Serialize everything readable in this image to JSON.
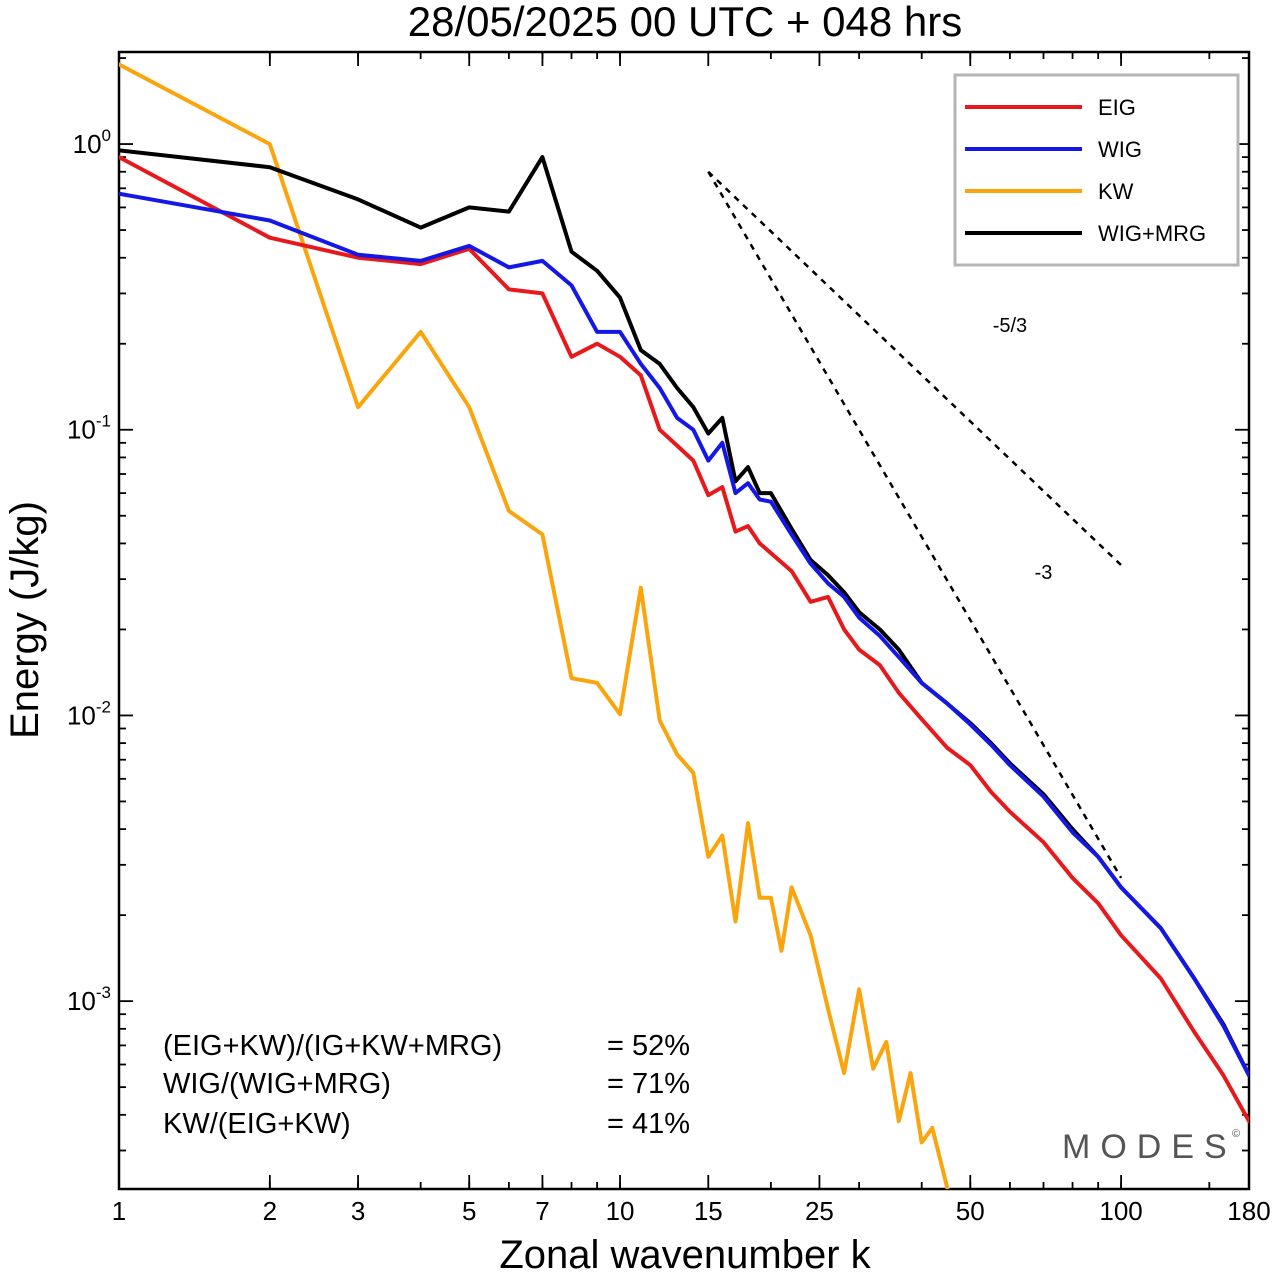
{
  "chart_data": {
    "type": "line",
    "title": "28/05/2025  00 UTC  + 048 hrs",
    "xlabel": "Zonal wavenumber k",
    "ylabel": "Energy (J/kg)",
    "xscale": "log",
    "yscale": "log",
    "xlim": [
      1,
      180
    ],
    "ylim": [
      0.00022,
      2.1
    ],
    "xticks": [
      1,
      2,
      3,
      5,
      7,
      10,
      15,
      25,
      50,
      100,
      180
    ],
    "xtick_labels": [
      "1",
      "2",
      "3",
      "5",
      "7",
      "10",
      "15",
      "25",
      "50",
      "100",
      "180"
    ],
    "yticks": [
      {
        "value": 1,
        "base": "10",
        "exp": "0"
      },
      {
        "value": 0.1,
        "base": "10",
        "exp": "-1"
      },
      {
        "value": 0.01,
        "base": "10",
        "exp": "-2"
      },
      {
        "value": 0.001,
        "base": "10",
        "exp": "-3"
      }
    ],
    "legend_position": "top-right",
    "series": [
      {
        "name": "EIG",
        "color": "#e8191c",
        "x": [
          1,
          2,
          3,
          4,
          5,
          6,
          7,
          8,
          9,
          10,
          11,
          12,
          13,
          14,
          15,
          16,
          17,
          18,
          19,
          20,
          22,
          24,
          26,
          28,
          30,
          33,
          36,
          40,
          45,
          50,
          55,
          60,
          70,
          80,
          90,
          100,
          120,
          140,
          160,
          180
        ],
        "y": [
          0.9,
          0.47,
          0.4,
          0.38,
          0.43,
          0.31,
          0.3,
          0.18,
          0.2,
          0.18,
          0.155,
          0.1,
          0.088,
          0.078,
          0.059,
          0.063,
          0.044,
          0.046,
          0.04,
          0.037,
          0.032,
          0.025,
          0.026,
          0.02,
          0.017,
          0.015,
          0.012,
          0.0097,
          0.0077,
          0.0067,
          0.0054,
          0.0046,
          0.0036,
          0.0027,
          0.0022,
          0.0017,
          0.0012,
          0.00078,
          0.00055,
          0.00038
        ]
      },
      {
        "name": "WIG",
        "color": "#1418e6",
        "x": [
          1,
          2,
          3,
          4,
          5,
          6,
          7,
          8,
          9,
          10,
          11,
          12,
          13,
          14,
          15,
          16,
          17,
          18,
          19,
          20,
          22,
          24,
          26,
          28,
          30,
          33,
          36,
          40,
          45,
          50,
          55,
          60,
          70,
          80,
          90,
          100,
          120,
          140,
          160,
          180
        ],
        "y": [
          0.67,
          0.54,
          0.41,
          0.39,
          0.44,
          0.37,
          0.39,
          0.32,
          0.22,
          0.22,
          0.17,
          0.14,
          0.11,
          0.1,
          0.078,
          0.09,
          0.06,
          0.065,
          0.057,
          0.056,
          0.043,
          0.034,
          0.029,
          0.026,
          0.022,
          0.019,
          0.016,
          0.013,
          0.011,
          0.0093,
          0.0079,
          0.0067,
          0.0052,
          0.0039,
          0.0032,
          0.0025,
          0.0018,
          0.0012,
          0.00082,
          0.00055
        ]
      },
      {
        "name": "KW",
        "color": "#fba50e",
        "x": [
          1,
          2,
          3,
          4,
          5,
          6,
          7,
          8,
          9,
          10,
          11,
          12,
          13,
          14,
          15,
          16,
          17,
          18,
          19,
          20,
          21,
          22,
          24,
          26,
          28,
          30,
          32,
          34,
          36,
          38,
          40,
          42,
          44,
          46
        ],
        "y": [
          1.9,
          1.0,
          0.12,
          0.22,
          0.12,
          0.052,
          0.043,
          0.0135,
          0.013,
          0.0101,
          0.028,
          0.0096,
          0.0073,
          0.0063,
          0.0032,
          0.0038,
          0.0019,
          0.0042,
          0.0023,
          0.0023,
          0.0015,
          0.0025,
          0.0017,
          0.00094,
          0.00056,
          0.0011,
          0.00058,
          0.00072,
          0.00038,
          0.00056,
          0.00032,
          0.00036,
          0.00026,
          0.00019
        ]
      },
      {
        "name": "WIG+MRG",
        "color": "#000000",
        "x": [
          1,
          2,
          3,
          4,
          5,
          6,
          7,
          8,
          9,
          10,
          11,
          12,
          13,
          14,
          15,
          16,
          17,
          18,
          19,
          20,
          22,
          24,
          26,
          28,
          30,
          33,
          36,
          40,
          45,
          50,
          55,
          60,
          70,
          80,
          90,
          100,
          120,
          140,
          160,
          180
        ],
        "y": [
          0.95,
          0.83,
          0.64,
          0.51,
          0.6,
          0.58,
          0.9,
          0.42,
          0.36,
          0.29,
          0.19,
          0.17,
          0.14,
          0.12,
          0.097,
          0.11,
          0.066,
          0.074,
          0.06,
          0.06,
          0.045,
          0.035,
          0.031,
          0.027,
          0.023,
          0.02,
          0.017,
          0.013,
          0.011,
          0.0094,
          0.008,
          0.0068,
          0.0053,
          0.004,
          0.0032,
          0.0025,
          0.0018,
          0.0012,
          0.00083,
          0.00055
        ]
      }
    ],
    "reference_lines": [
      {
        "label": "-5/3",
        "x": [
          15,
          100
        ],
        "y": [
          0.8,
          0.0336
        ],
        "style": "dashed",
        "label_x": 60,
        "label_y": 0.22
      },
      {
        "label": "-3",
        "x": [
          15,
          100
        ],
        "y": [
          0.8,
          0.0027
        ],
        "style": "dashed",
        "label_x": 70,
        "label_y": 0.03
      }
    ],
    "annotations": [
      {
        "label": "(EIG+KW)/(IG+KW+MRG)",
        "value": "= 52%"
      },
      {
        "label": "WIG/(WIG+MRG)",
        "value": "= 71%"
      },
      {
        "label": "KW/(EIG+KW)",
        "value": "= 41%"
      }
    ]
  },
  "watermark": {
    "text": "MODES",
    "symbol": "©"
  }
}
